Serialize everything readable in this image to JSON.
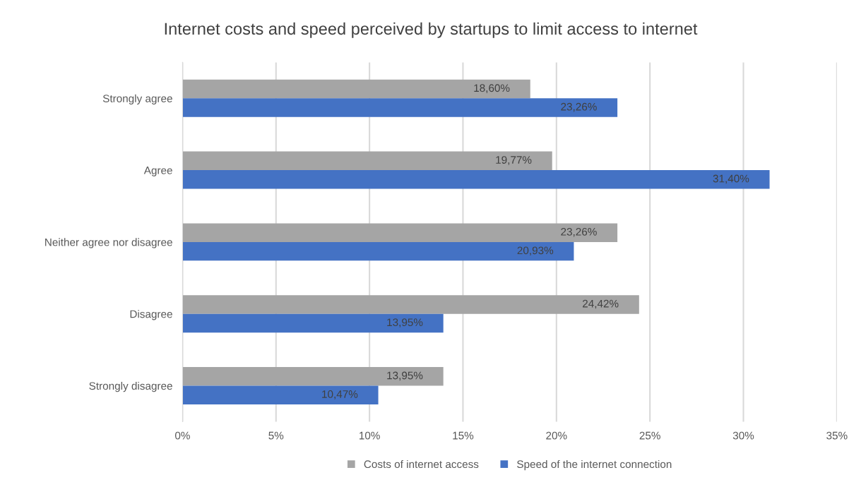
{
  "chart_data": {
    "type": "bar",
    "orientation": "horizontal",
    "title": "Internet costs and speed perceived by startups to limit access to internet",
    "categories": [
      "Strongly agree",
      "Agree",
      "Neither agree nor disagree",
      "Disagree",
      "Strongly disagree"
    ],
    "series": [
      {
        "name": "Costs of internet access",
        "color": "#a5a5a5",
        "values": [
          18.6,
          19.77,
          23.26,
          24.42,
          13.95
        ],
        "value_labels": [
          "18,60%",
          "19,77%",
          "23,26%",
          "24,42%",
          "13,95%"
        ]
      },
      {
        "name": "Speed of the internet connection",
        "color": "#4472c4",
        "values": [
          23.26,
          31.4,
          20.93,
          13.95,
          10.47
        ],
        "value_labels": [
          "23,26%",
          "31,40%",
          "20,93%",
          "13,95%",
          "10,47%"
        ]
      }
    ],
    "xlim": [
      0,
      35
    ],
    "xticks": [
      {
        "value": 0,
        "label": "0%"
      },
      {
        "value": 5,
        "label": "5%"
      },
      {
        "value": 10,
        "label": "10%"
      },
      {
        "value": 15,
        "label": "15%"
      },
      {
        "value": 20,
        "label": "20%"
      },
      {
        "value": 25,
        "label": "25%"
      },
      {
        "value": 30,
        "label": "30%"
      },
      {
        "value": 35,
        "label": "35%"
      }
    ],
    "grid": "x",
    "legend": "bottom"
  }
}
